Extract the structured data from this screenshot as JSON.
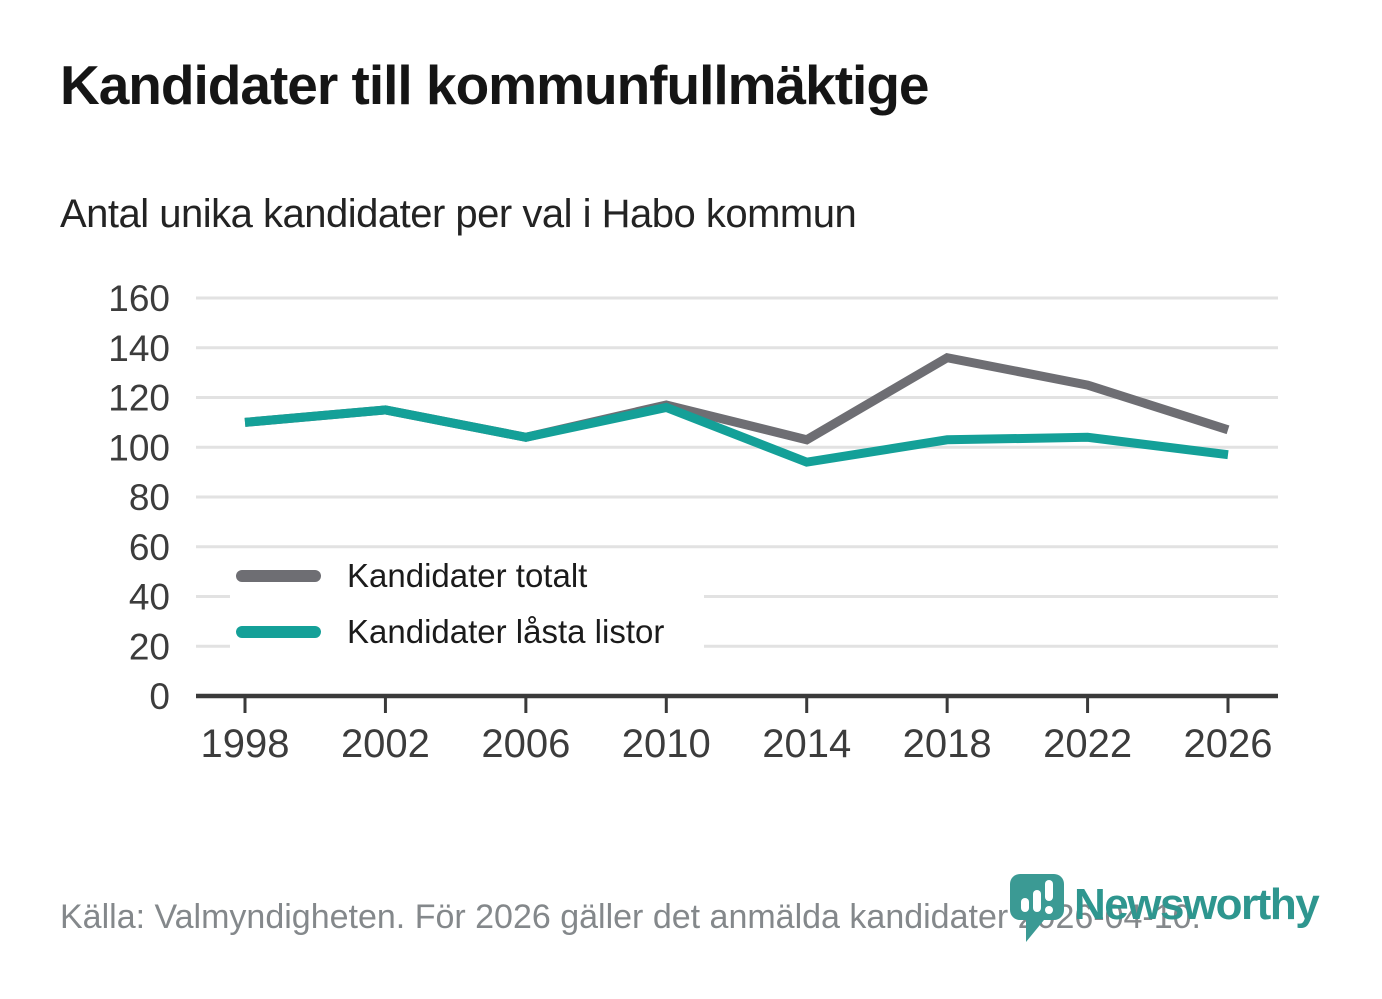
{
  "header": {
    "title": "Kandidater till kommunfullmäktige",
    "subtitle": "Antal unika kandidater per val i Habo kommun"
  },
  "chart_data": {
    "type": "line",
    "title": "Kandidater till kommunfullmäktige",
    "subtitle": "Antal unika kandidater per val i Habo kommun",
    "categories": [
      "1998",
      "2002",
      "2006",
      "2010",
      "2014",
      "2018",
      "2022",
      "2026"
    ],
    "series": [
      {
        "name": "Kandidater totalt",
        "color": "#6e6e73",
        "values": [
          110,
          115,
          104,
          117,
          103,
          136,
          125,
          107
        ]
      },
      {
        "name": "Kandidater låsta listor",
        "color": "#14a098",
        "values": [
          110,
          115,
          104,
          116,
          94,
          103,
          104,
          97
        ]
      }
    ],
    "ylim": [
      0,
      160
    ],
    "yticks": [
      0,
      20,
      40,
      60,
      80,
      100,
      120,
      140,
      160
    ],
    "grid": "horizontal-only",
    "legend_position": "inside-lower-left",
    "axis_color": "#3a3a3a",
    "gridline_color": "#e2e2e2"
  },
  "footer": {
    "source_text": "Källa: Valmyndigheten. För 2026 gäller det anmälda kandidater 2026-04-10."
  },
  "logo": {
    "text": "Newsworthy",
    "text_color": "#2e968f",
    "pin_color": "#3b9a94"
  }
}
